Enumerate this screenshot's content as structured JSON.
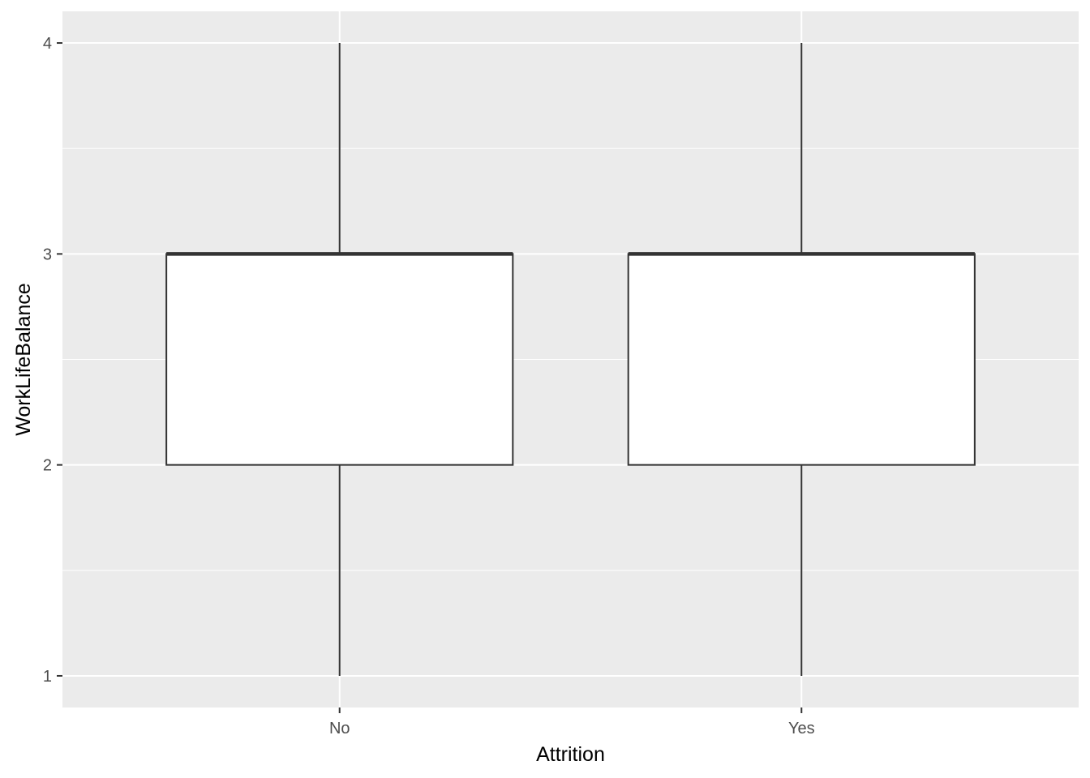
{
  "chart_data": {
    "type": "boxplot",
    "title": "",
    "xlabel": "Attrition",
    "ylabel": "WorkLifeBalance",
    "categories": [
      "No",
      "Yes"
    ],
    "boxes": [
      {
        "category": "No",
        "min": 1,
        "q1": 2,
        "median": 3,
        "q3": 3,
        "max": 4
      },
      {
        "category": "Yes",
        "min": 1,
        "q1": 2,
        "median": 3,
        "q3": 3,
        "max": 4
      }
    ],
    "y_ticks": [
      1,
      2,
      3,
      4
    ],
    "ylim": [
      0.85,
      4.15
    ],
    "grid": true,
    "legend": "none",
    "colors": {
      "panel": "#ebebeb",
      "grid": "#ffffff",
      "box_fill": "#ffffff",
      "box_line": "#333333",
      "tick_text": "#4d4d4d"
    }
  }
}
